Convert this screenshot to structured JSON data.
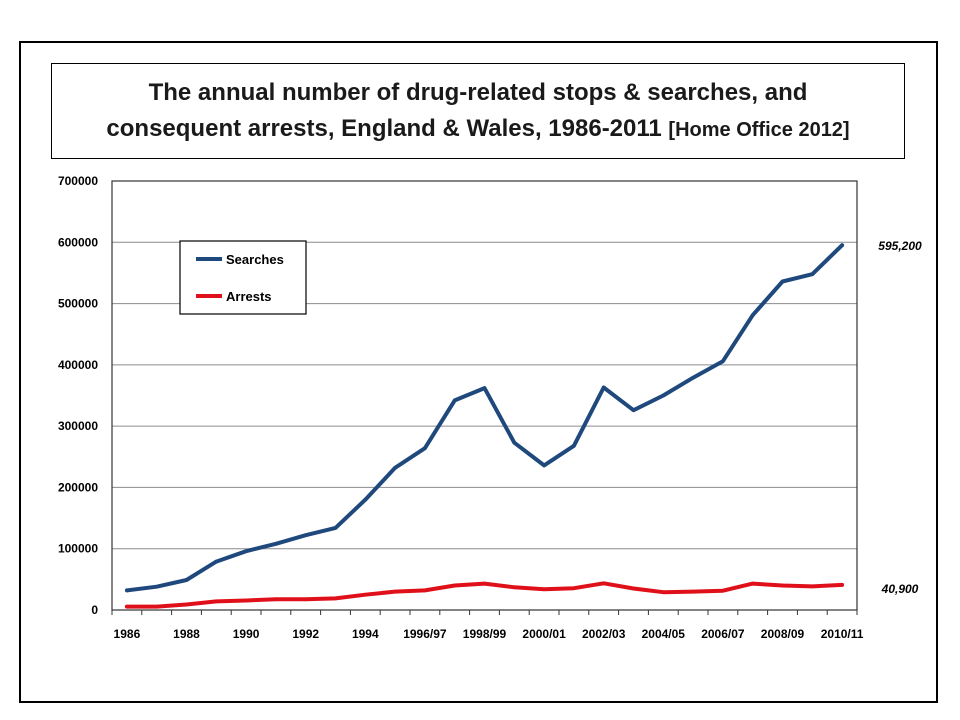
{
  "chart_data": {
    "type": "line",
    "title": "The annual number of drug-related stops & searches, and consequent arrests, England & Wales, 1986-2011",
    "source": "[Home Office 2012]",
    "xlabel": "",
    "ylabel": "",
    "ylim": [
      0,
      700000
    ],
    "y_ticks": [
      "0",
      "100000",
      "200000",
      "300000",
      "400000",
      "500000",
      "600000",
      "700000"
    ],
    "x": [
      "1986",
      "1987",
      "1988",
      "1989",
      "1990",
      "1991",
      "1992",
      "1993",
      "1994",
      "1995",
      "1996/97",
      "1997/98",
      "1998/99",
      "1999/00",
      "2000/01",
      "2001/02",
      "2002/03",
      "2003/04",
      "2004/05",
      "2005/06",
      "2006/07",
      "2007/08",
      "2008/09",
      "2009/10",
      "2010/11"
    ],
    "x_tick_labels": [
      "1986",
      "1988",
      "1990",
      "1992",
      "1994",
      "1996/97",
      "1998/99",
      "2000/01",
      "2002/03",
      "2004/05",
      "2006/07",
      "2008/09",
      "2010/11"
    ],
    "grid": true,
    "legend_position": "top-left",
    "series": [
      {
        "name": "Searches",
        "color": "#1f497d",
        "values": [
          32000,
          38000,
          49000,
          79000,
          96000,
          108000,
          122000,
          134000,
          180000,
          232000,
          264000,
          342000,
          362000,
          273000,
          236000,
          268000,
          363000,
          326000,
          350000,
          379000,
          406000,
          481000,
          536000,
          548000,
          595200
        ]
      },
      {
        "name": "Arrests",
        "color": "#e0101a",
        "values": [
          5500,
          5500,
          9000,
          14000,
          15500,
          17500,
          17500,
          19000,
          25000,
          30000,
          32000,
          40000,
          43000,
          37000,
          34000,
          35500,
          43500,
          35000,
          29000,
          30000,
          31500,
          43000,
          40000,
          38500,
          40900
        ]
      }
    ],
    "annotations": [
      "595,200",
      "40,900"
    ]
  }
}
